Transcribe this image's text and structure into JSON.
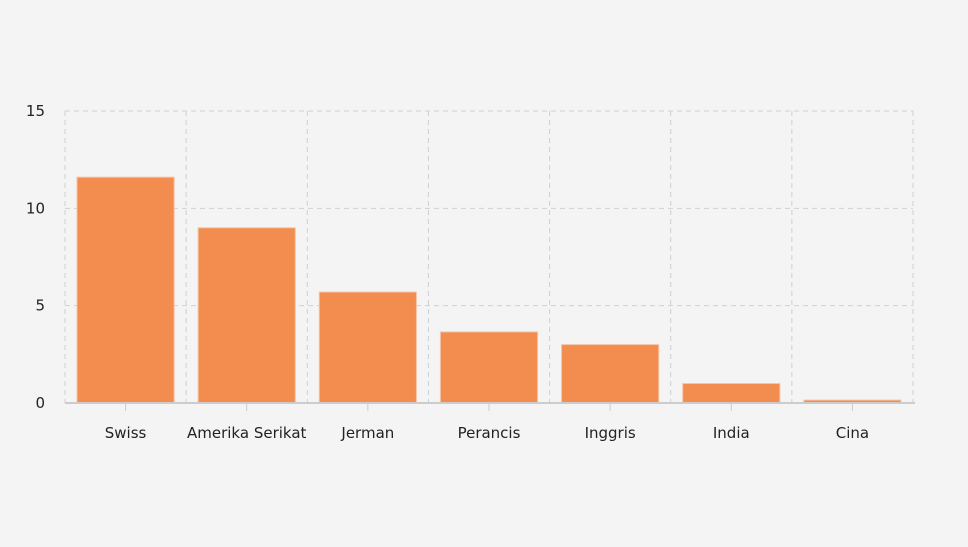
{
  "chart_data": {
    "type": "bar",
    "title": "",
    "xlabel": "",
    "ylabel": "",
    "categories": [
      "Swiss",
      "Amerika Serikat",
      "Jerman",
      "Perancis",
      "Inggris",
      "India",
      "Cina"
    ],
    "values": [
      11.6,
      9.0,
      5.7,
      3.65,
      3.0,
      1.0,
      0.15
    ],
    "ylim": [
      0,
      15
    ],
    "yticks": [
      0,
      5,
      10,
      15
    ],
    "grid": true,
    "bar_color": "#f28c4f"
  }
}
